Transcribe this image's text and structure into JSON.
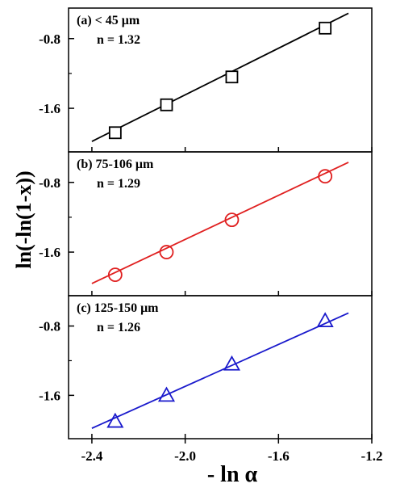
{
  "chart_data": {
    "type": "scatter",
    "layout": "three stacked panels sharing x-axis",
    "xlabel": "- ln α",
    "ylabel": "ln(-ln(1-x))",
    "xlim": [
      -2.5,
      -1.2
    ],
    "x_ticks": [
      -2.4,
      -2.0,
      -1.6,
      -1.2
    ],
    "x_tick_labels": [
      "-2.4",
      "-2.0",
      "-1.6",
      "-1.2"
    ],
    "panels": [
      {
        "label": "(a) < 45 μm",
        "n_label": "n = 1.32",
        "color": "#000000",
        "marker": "square",
        "ylim": [
          -2.1,
          -0.45
        ],
        "y_ticks": [
          -0.8,
          -1.6
        ],
        "y_tick_labels": [
          "-0.8",
          "-1.6"
        ],
        "x": [
          -2.3,
          -2.08,
          -1.8,
          -1.4
        ],
        "y": [
          -1.88,
          -1.56,
          -1.24,
          -0.68
        ],
        "fit_line": {
          "x": [
            -2.4,
            -1.3
          ],
          "y": [
            -1.98,
            -0.51
          ]
        }
      },
      {
        "label": "(b) 75-106 μm",
        "n_label": "n = 1.29",
        "color": "#e02020",
        "marker": "circle",
        "ylim": [
          -2.1,
          -0.45
        ],
        "y_ticks": [
          -0.8,
          -1.6
        ],
        "y_tick_labels": [
          "-0.8",
          "-1.6"
        ],
        "x": [
          -2.3,
          -2.08,
          -1.8,
          -1.4
        ],
        "y": [
          -1.86,
          -1.6,
          -1.23,
          -0.73
        ],
        "fit_line": {
          "x": [
            -2.4,
            -1.3
          ],
          "y": [
            -1.96,
            -0.57
          ]
        }
      },
      {
        "label": "(c) 125-150 μm",
        "n_label": "n = 1.26",
        "color": "#1a1acc",
        "marker": "triangle",
        "ylim": [
          -2.1,
          -0.45
        ],
        "y_ticks": [
          -0.8,
          -1.6
        ],
        "y_tick_labels": [
          "-0.8",
          "-1.6"
        ],
        "x": [
          -2.3,
          -2.08,
          -1.8,
          -1.4
        ],
        "y": [
          -1.9,
          -1.6,
          -1.24,
          -0.74
        ],
        "fit_line": {
          "x": [
            -2.4,
            -1.3
          ],
          "y": [
            -1.98,
            -0.65
          ]
        }
      }
    ]
  }
}
